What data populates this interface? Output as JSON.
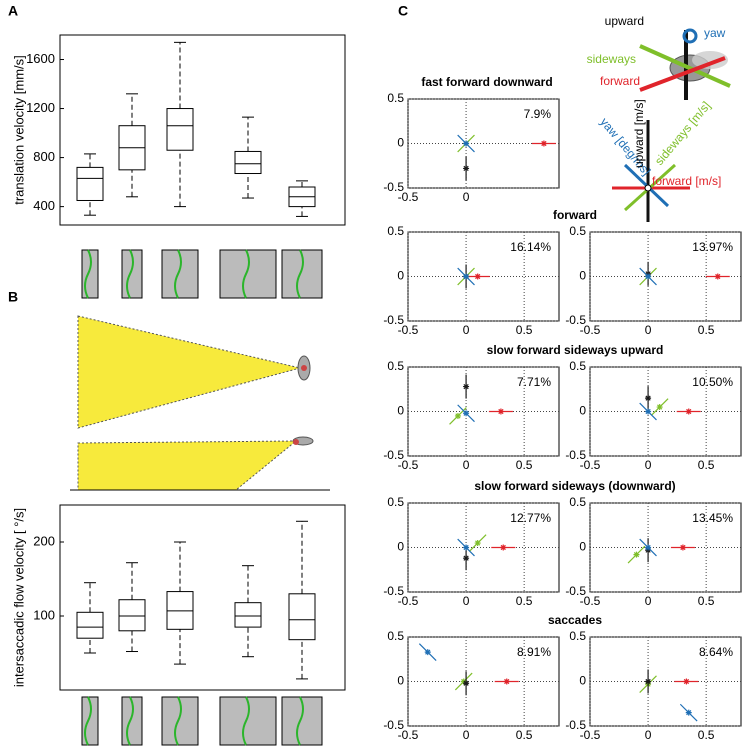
{
  "panel_labels": [
    "A",
    "B",
    "C"
  ],
  "components": [
    {
      "name": "forward",
      "axis_label": "forward [m/s]",
      "color": "#e0242b"
    },
    {
      "name": "sideways",
      "axis_label": "sideways [m/s]",
      "color": "#7fbf2a"
    },
    {
      "name": "upward",
      "axis_label": "upward [m/s]",
      "color": "#1a1a1a"
    },
    {
      "name": "yaw",
      "axis_label": "yaw [deg/ms]",
      "color": "#1f6fb5"
    }
  ],
  "chart_data": [
    {
      "type": "box",
      "ylabel": "translation velocity [mm/s]",
      "ylim": [
        250,
        1800
      ],
      "yticks": [
        400,
        800,
        1200,
        1600
      ],
      "boxes": [
        {
          "low": 330,
          "q1": 450,
          "median": 630,
          "q3": 720,
          "high": 830
        },
        {
          "low": 480,
          "q1": 700,
          "median": 880,
          "q3": 1060,
          "high": 1320
        },
        {
          "low": 400,
          "q1": 860,
          "median": 1060,
          "q3": 1200,
          "high": 1740
        },
        {
          "low": 470,
          "q1": 670,
          "median": 750,
          "q3": 850,
          "high": 1130
        },
        {
          "low": 320,
          "q1": 400,
          "median": 480,
          "q3": 560,
          "high": 610
        }
      ]
    },
    {
      "type": "box",
      "ylabel": "intersaccadic flow velocity [ °/s]",
      "ylim": [
        0,
        250
      ],
      "yticks": [
        100,
        200
      ],
      "boxes": [
        {
          "low": 50,
          "q1": 70,
          "median": 85,
          "q3": 105,
          "high": 145
        },
        {
          "low": 52,
          "q1": 80,
          "median": 100,
          "q3": 122,
          "high": 172
        },
        {
          "low": 35,
          "q1": 82,
          "median": 107,
          "q3": 133,
          "high": 200
        },
        {
          "low": 45,
          "q1": 85,
          "median": 100,
          "q3": 118,
          "high": 168
        },
        {
          "low": 15,
          "q1": 68,
          "median": 95,
          "q3": 130,
          "high": 228
        }
      ]
    },
    {
      "type": "scatter",
      "title": "fast forward downward",
      "annotation": "7.9%",
      "xlim": [
        -0.5,
        0.8
      ],
      "ylim": [
        -0.5,
        0.5
      ],
      "xticks": [
        -0.5,
        0
      ],
      "yticks": [
        -0.5,
        0,
        0.5
      ],
      "points": [
        {
          "x": 0.67,
          "y": 0
        },
        {
          "x": 0,
          "y": 0
        },
        {
          "x": 0,
          "y": -0.28
        },
        {
          "x": 0,
          "y": 0
        }
      ]
    },
    {
      "type": "scatter",
      "title": "forward",
      "annotation": "16.14%",
      "xlim": [
        -0.5,
        0.8
      ],
      "ylim": [
        -0.5,
        0.5
      ],
      "xticks": [
        -0.5,
        0,
        0.5
      ],
      "yticks": [
        -0.5,
        0,
        0.5
      ],
      "points": [
        {
          "x": 0.1,
          "y": 0
        },
        {
          "x": 0,
          "y": 0
        },
        {
          "x": 0,
          "y": 0
        },
        {
          "x": 0,
          "y": 0
        }
      ]
    },
    {
      "type": "scatter",
      "annotation": "13.97%",
      "xlim": [
        -0.5,
        0.8
      ],
      "ylim": [
        -0.5,
        0.5
      ],
      "xticks": [
        -0.5,
        0,
        0.5
      ],
      "yticks": [
        -0.5,
        0,
        0.5
      ],
      "points": [
        {
          "x": 0.6,
          "y": 0
        },
        {
          "x": 0,
          "y": 0
        },
        {
          "x": 0,
          "y": 0.03
        },
        {
          "x": 0,
          "y": 0
        }
      ]
    },
    {
      "type": "scatter",
      "title": "slow forward sideways upward",
      "annotation": "7.71%",
      "xlim": [
        -0.5,
        0.8
      ],
      "ylim": [
        -0.5,
        0.5
      ],
      "xticks": [
        -0.5,
        0,
        0.5
      ],
      "yticks": [
        -0.5,
        0,
        0.5
      ],
      "points": [
        {
          "x": 0.3,
          "y": 0
        },
        {
          "x": -0.07,
          "y": -0.05
        },
        {
          "x": 0,
          "y": 0.28
        },
        {
          "x": 0,
          "y": -0.02
        }
      ]
    },
    {
      "type": "scatter",
      "annotation": "10.50%",
      "xlim": [
        -0.5,
        0.8
      ],
      "ylim": [
        -0.5,
        0.5
      ],
      "xticks": [
        -0.5,
        0,
        0.5
      ],
      "yticks": [
        -0.5,
        0,
        0.5
      ],
      "points": [
        {
          "x": 0.35,
          "y": 0
        },
        {
          "x": 0.1,
          "y": 0.05
        },
        {
          "x": 0,
          "y": 0.15
        },
        {
          "x": 0,
          "y": 0
        }
      ]
    },
    {
      "type": "scatter",
      "title": "slow forward sideways (downward)",
      "annotation": "12.77%",
      "xlim": [
        -0.5,
        0.8
      ],
      "ylim": [
        -0.5,
        0.5
      ],
      "xticks": [
        -0.5,
        0,
        0.5
      ],
      "yticks": [
        -0.5,
        0,
        0.5
      ],
      "points": [
        {
          "x": 0.32,
          "y": 0
        },
        {
          "x": 0.1,
          "y": 0.05
        },
        {
          "x": 0,
          "y": -0.12
        },
        {
          "x": 0,
          "y": 0
        }
      ]
    },
    {
      "type": "scatter",
      "annotation": "13.45%",
      "xlim": [
        -0.5,
        0.8
      ],
      "ylim": [
        -0.5,
        0.5
      ],
      "xticks": [
        -0.5,
        0,
        0.5
      ],
      "yticks": [
        -0.5,
        0,
        0.5
      ],
      "points": [
        {
          "x": 0.3,
          "y": 0
        },
        {
          "x": -0.1,
          "y": -0.08
        },
        {
          "x": 0,
          "y": -0.03
        },
        {
          "x": 0,
          "y": 0
        }
      ]
    },
    {
      "type": "scatter",
      "title": "saccades",
      "annotation": "8.91%",
      "xlim": [
        -0.5,
        0.8
      ],
      "ylim": [
        -0.5,
        0.5
      ],
      "xticks": [
        -0.5,
        0,
        0.5
      ],
      "yticks": [
        -0.5,
        0,
        0.5
      ],
      "points": [
        {
          "x": 0.35,
          "y": 0
        },
        {
          "x": -0.02,
          "y": 0
        },
        {
          "x": 0,
          "y": -0.02
        },
        {
          "x": -0.33,
          "y": 0.33
        }
      ]
    },
    {
      "type": "scatter",
      "annotation": "8.64%",
      "xlim": [
        -0.5,
        0.8
      ],
      "ylim": [
        -0.5,
        0.5
      ],
      "xticks": [
        -0.5,
        0,
        0.5
      ],
      "yticks": [
        -0.5,
        0,
        0.5
      ],
      "points": [
        {
          "x": 0.33,
          "y": 0
        },
        {
          "x": 0,
          "y": -0.03
        },
        {
          "x": 0,
          "y": 0
        },
        {
          "x": 0.35,
          "y": -0.35
        }
      ]
    }
  ]
}
